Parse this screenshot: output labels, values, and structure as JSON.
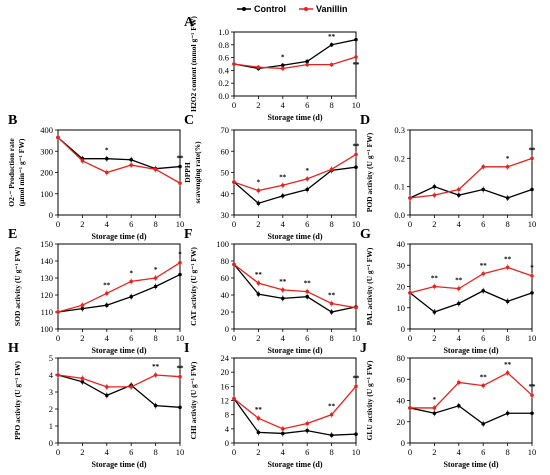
{
  "legend": [
    {
      "name": "Control",
      "color": "#000000"
    },
    {
      "name": "Vanillin",
      "color": "#e8221e"
    }
  ],
  "chart_data": [
    {
      "letter": "A",
      "type": "line",
      "xlabel": "Storage time (d)",
      "ylabel_lines": [
        "H2O2 content (mmol g⁻¹ FW)"
      ],
      "x": [
        0,
        2,
        4,
        6,
        8,
        10
      ],
      "xticks": [
        "0",
        "2",
        "4",
        "6",
        "8",
        "10"
      ],
      "ylim": [
        0.0,
        1.0
      ],
      "yticks": [
        "0.0",
        "0.2",
        "0.4",
        "0.6",
        "0.8",
        "1.0"
      ],
      "series": [
        {
          "name": "Control",
          "values": [
            0.5,
            0.43,
            0.48,
            0.54,
            0.8,
            0.88
          ]
        },
        {
          "name": "Vanillin",
          "values": [
            0.5,
            0.45,
            0.43,
            0.49,
            0.49,
            0.61
          ]
        }
      ],
      "annotations": [
        {
          "x": 4,
          "text": "*"
        },
        {
          "x": 8,
          "text": "**"
        },
        {
          "x": 10,
          "text": "**"
        }
      ]
    },
    {
      "letter": "B",
      "type": "line",
      "xlabel": "Storage time (d)",
      "ylabel_lines": [
        "O2·⁻ Production rate",
        "(μmol min⁻¹ g⁻¹ FW)"
      ],
      "x": [
        0,
        2,
        4,
        6,
        8,
        10
      ],
      "xticks": [
        "0",
        "2",
        "4",
        "6",
        "8",
        "10"
      ],
      "ylim": [
        0,
        400
      ],
      "yticks": [
        "0",
        "100",
        "200",
        "300",
        "400"
      ],
      "series": [
        {
          "name": "Control",
          "values": [
            365,
            265,
            265,
            260,
            218,
            228
          ]
        },
        {
          "name": "Vanillin",
          "values": [
            365,
            255,
            200,
            235,
            215,
            150
          ]
        }
      ],
      "annotations": [
        {
          "x": 4,
          "text": "*"
        },
        {
          "x": 10,
          "text": "**"
        }
      ]
    },
    {
      "letter": "C",
      "type": "line",
      "xlabel": "Storage time (d)",
      "ylabel_lines": [
        "DPPH",
        "scavenging rate(%)"
      ],
      "x": [
        0,
        2,
        4,
        6,
        8,
        10
      ],
      "xticks": [
        "0",
        "2",
        "4",
        "6",
        "8",
        "10"
      ],
      "ylim": [
        30,
        70
      ],
      "yticks": [
        "30",
        "40",
        "50",
        "60",
        "70"
      ],
      "series": [
        {
          "name": "Control",
          "values": [
            45.5,
            35.5,
            39,
            42,
            51,
            52.5
          ]
        },
        {
          "name": "Vanillin",
          "values": [
            45.5,
            41.5,
            44,
            47,
            51.5,
            58.5
          ]
        }
      ],
      "annotations": [
        {
          "x": 2,
          "text": "*"
        },
        {
          "x": 4,
          "text": "**"
        },
        {
          "x": 6,
          "text": "*"
        },
        {
          "x": 10,
          "text": "**"
        }
      ]
    },
    {
      "letter": "D",
      "type": "line",
      "xlabel": "",
      "ylabel_lines": [
        "POD activity (U g⁻¹ FW)"
      ],
      "x": [
        0,
        2,
        4,
        6,
        8,
        10
      ],
      "xticks": [
        "0",
        "2",
        "4",
        "6",
        "8",
        "10"
      ],
      "ylim": [
        0.0,
        0.3
      ],
      "yticks": [
        "0.0",
        "0.1",
        "0.2",
        "0.3"
      ],
      "series": [
        {
          "name": "Control",
          "values": [
            0.06,
            0.1,
            0.07,
            0.09,
            0.06,
            0.09
          ]
        },
        {
          "name": "Vanillin",
          "values": [
            0.06,
            0.07,
            0.09,
            0.17,
            0.17,
            0.2
          ]
        }
      ],
      "annotations": [
        {
          "x": 8,
          "text": "*"
        },
        {
          "x": 10,
          "text": "**"
        }
      ]
    },
    {
      "letter": "E",
      "type": "line",
      "xlabel": "Storage time (d)",
      "ylabel_lines": [
        "SOD activity (U g⁻¹ FW)"
      ],
      "x": [
        0,
        2,
        4,
        6,
        8,
        10
      ],
      "xticks": [
        "0",
        "2",
        "4",
        "6",
        "8",
        "10"
      ],
      "ylim": [
        100,
        150
      ],
      "yticks": [
        "100",
        "110",
        "120",
        "130",
        "140",
        "150"
      ],
      "series": [
        {
          "name": "Control",
          "values": [
            110,
            112,
            114,
            119,
            125,
            132
          ]
        },
        {
          "name": "Vanillin",
          "values": [
            110,
            114,
            121,
            128,
            130,
            139
          ]
        }
      ],
      "annotations": [
        {
          "x": 4,
          "text": "**"
        },
        {
          "x": 6,
          "text": "*"
        },
        {
          "x": 8,
          "text": "*"
        },
        {
          "x": 10,
          "text": "*"
        }
      ]
    },
    {
      "letter": "F",
      "type": "line",
      "xlabel": "Storage time (d)",
      "ylabel_lines": [
        "CAT activity (U g⁻¹ FW)"
      ],
      "x": [
        0,
        2,
        4,
        6,
        8,
        10
      ],
      "xticks": [
        "0",
        "2",
        "4",
        "6",
        "8",
        "10"
      ],
      "ylim": [
        0,
        100
      ],
      "yticks": [
        "0",
        "20",
        "40",
        "60",
        "80",
        "100"
      ],
      "series": [
        {
          "name": "Control",
          "values": [
            76,
            41,
            36,
            38,
            20,
            26
          ]
        },
        {
          "name": "Vanillin",
          "values": [
            76,
            54,
            46,
            44,
            30,
            25
          ]
        }
      ],
      "annotations": [
        {
          "x": 2,
          "text": "**"
        },
        {
          "x": 4,
          "text": "**"
        },
        {
          "x": 6,
          "text": "**"
        },
        {
          "x": 8,
          "text": "**"
        }
      ]
    },
    {
      "letter": "G",
      "type": "line",
      "xlabel": "Storage time (d)",
      "ylabel_lines": [
        "PAL activity (U g⁻¹ FW)"
      ],
      "x": [
        0,
        2,
        4,
        6,
        8,
        10
      ],
      "xticks": [
        "0",
        "2",
        "4",
        "6",
        "8",
        "10"
      ],
      "ylim": [
        0,
        40
      ],
      "yticks": [
        "0",
        "10",
        "20",
        "30",
        "40"
      ],
      "series": [
        {
          "name": "Control",
          "values": [
            17,
            8,
            12,
            18,
            13,
            17
          ]
        },
        {
          "name": "Vanillin",
          "values": [
            17,
            20,
            19,
            26,
            29,
            25
          ]
        }
      ],
      "annotations": [
        {
          "x": 2,
          "text": "**"
        },
        {
          "x": 4,
          "text": "**"
        },
        {
          "x": 6,
          "text": "**"
        },
        {
          "x": 8,
          "text": "**"
        },
        {
          "x": 10,
          "text": "*"
        }
      ]
    },
    {
      "letter": "H",
      "type": "line",
      "xlabel": "Storage time (d)",
      "ylabel_lines": [
        "PPO activity (U g⁻¹ FW)"
      ],
      "x": [
        0,
        2,
        4,
        6,
        8,
        10
      ],
      "xticks": [
        "0",
        "2",
        "4",
        "6",
        "8",
        "10"
      ],
      "ylim": [
        0,
        5
      ],
      "yticks": [
        "0",
        "1",
        "2",
        "3",
        "4",
        "5"
      ],
      "series": [
        {
          "name": "Control",
          "values": [
            4.0,
            3.6,
            2.8,
            3.4,
            2.2,
            2.1
          ]
        },
        {
          "name": "Vanillin",
          "values": [
            4.0,
            3.8,
            3.3,
            3.3,
            4.0,
            3.9
          ]
        }
      ],
      "annotations": [
        {
          "x": 8,
          "text": "**"
        },
        {
          "x": 10,
          "text": "**"
        }
      ]
    },
    {
      "letter": "I",
      "type": "line",
      "xlabel": "Storage time (d)",
      "ylabel_lines": [
        "CHI activity (U g⁻¹ FW)"
      ],
      "x": [
        0,
        2,
        4,
        6,
        8,
        10
      ],
      "xticks": [
        "0",
        "2",
        "4",
        "6",
        "8",
        "10"
      ],
      "ylim": [
        0,
        24
      ],
      "yticks": [
        "0",
        "4",
        "8",
        "12",
        "16",
        "20",
        "24"
      ],
      "series": [
        {
          "name": "Control",
          "values": [
            12.5,
            3,
            2.7,
            3.5,
            2.2,
            2.5
          ]
        },
        {
          "name": "Vanillin",
          "values": [
            12.5,
            7,
            4,
            5.5,
            8,
            16
          ]
        }
      ],
      "annotations": [
        {
          "x": 2,
          "text": "**"
        },
        {
          "x": 8,
          "text": "**"
        },
        {
          "x": 10,
          "text": "**"
        }
      ]
    },
    {
      "letter": "J",
      "type": "line",
      "xlabel": "Storage time (d)",
      "ylabel_lines": [
        "GLU activity (U g⁻¹ FW)"
      ],
      "x": [
        0,
        2,
        4,
        6,
        8,
        10
      ],
      "xticks": [
        "0",
        "2",
        "4",
        "6",
        "8",
        "10"
      ],
      "ylim": [
        0,
        80
      ],
      "yticks": [
        "0",
        "20",
        "40",
        "60",
        "80"
      ],
      "series": [
        {
          "name": "Control",
          "values": [
            33,
            28,
            35,
            18,
            28,
            28
          ]
        },
        {
          "name": "Vanillin",
          "values": [
            33,
            33,
            57,
            54,
            66,
            45
          ]
        }
      ],
      "annotations": [
        {
          "x": 2,
          "text": "*"
        },
        {
          "x": 6,
          "text": "**"
        },
        {
          "x": 8,
          "text": "**"
        },
        {
          "x": 10,
          "text": "**"
        }
      ]
    }
  ]
}
